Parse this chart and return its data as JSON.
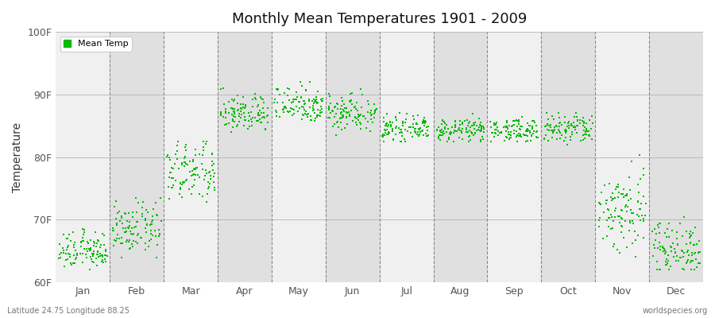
{
  "title": "Monthly Mean Temperatures 1901 - 2009",
  "ylabel": "Temperature",
  "bg_color": "#ffffff",
  "plot_bg_color": "#f0f0f0",
  "alt_band_color": "#e0e0e0",
  "dot_color": "#00bb00",
  "dot_size": 3,
  "ylim": [
    60,
    100
  ],
  "yticks": [
    60,
    70,
    80,
    90,
    100
  ],
  "ytick_labels": [
    "60F",
    "70F",
    "80F",
    "90F",
    "100F"
  ],
  "months": [
    "Jan",
    "Feb",
    "Mar",
    "Apr",
    "May",
    "Jun",
    "Jul",
    "Aug",
    "Sep",
    "Oct",
    "Nov",
    "Dec"
  ],
  "legend_label": "Mean Temp",
  "footer_left": "Latitude 24.75 Longitude 88.25",
  "footer_right": "worldspecies.org",
  "n_years": 109,
  "monthly_means": [
    65.0,
    68.5,
    77.5,
    87.0,
    88.5,
    87.2,
    84.5,
    84.3,
    84.3,
    84.5,
    71.5,
    65.5
  ],
  "monthly_stds": [
    1.5,
    2.0,
    2.5,
    1.5,
    1.5,
    1.5,
    0.9,
    0.9,
    0.9,
    1.3,
    3.5,
    2.2
  ],
  "monthly_mins": [
    62.0,
    64.0,
    72.0,
    83.5,
    84.5,
    83.5,
    82.5,
    82.5,
    82.5,
    82.0,
    63.0,
    62.0
  ],
  "monthly_maxs": [
    68.5,
    73.5,
    82.5,
    91.0,
    92.0,
    91.0,
    87.0,
    87.0,
    87.0,
    87.0,
    84.0,
    72.0
  ]
}
